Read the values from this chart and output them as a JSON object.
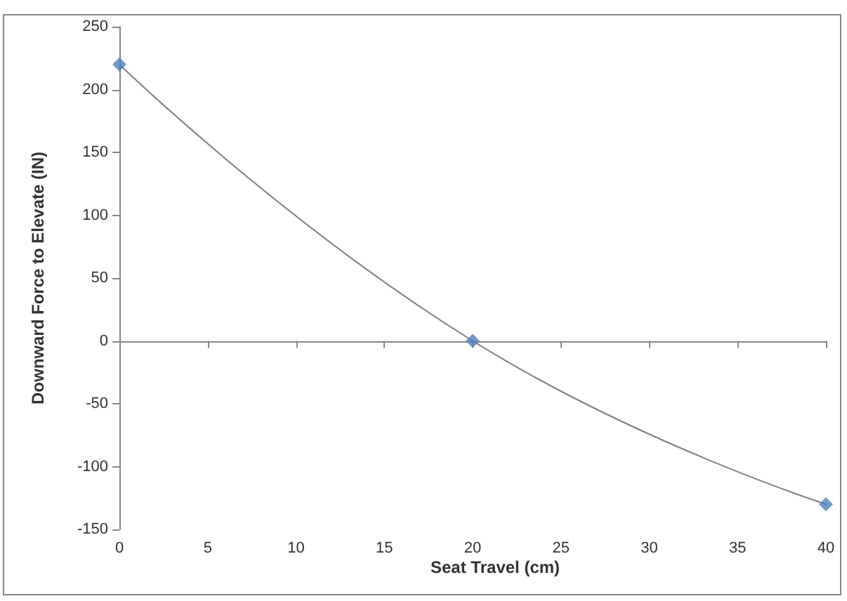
{
  "chart_data": {
    "type": "scatter",
    "xlabel": "Seat Travel (cm)",
    "ylabel": "Downward Force to Elevate (IN)",
    "series": [
      {
        "color": "#4f81bd",
        "marker": "diamond",
        "x": [
          0,
          20,
          40
        ],
        "values": [
          220,
          0,
          -130
        ]
      },
      {
        "type": "line",
        "color": "#7f7f7f",
        "marker": "none",
        "x": [
          0,
          20,
          40
        ],
        "values": [
          220,
          0,
          -130
        ]
      }
    ],
    "xlim": [
      0,
      40
    ],
    "xticks": [
      0,
      5,
      10,
      15,
      20,
      25,
      30,
      35,
      40
    ],
    "ylim": [
      -150,
      250
    ],
    "yticks": [
      -150,
      -100,
      -50,
      0,
      50,
      100,
      150,
      200,
      250
    ]
  }
}
